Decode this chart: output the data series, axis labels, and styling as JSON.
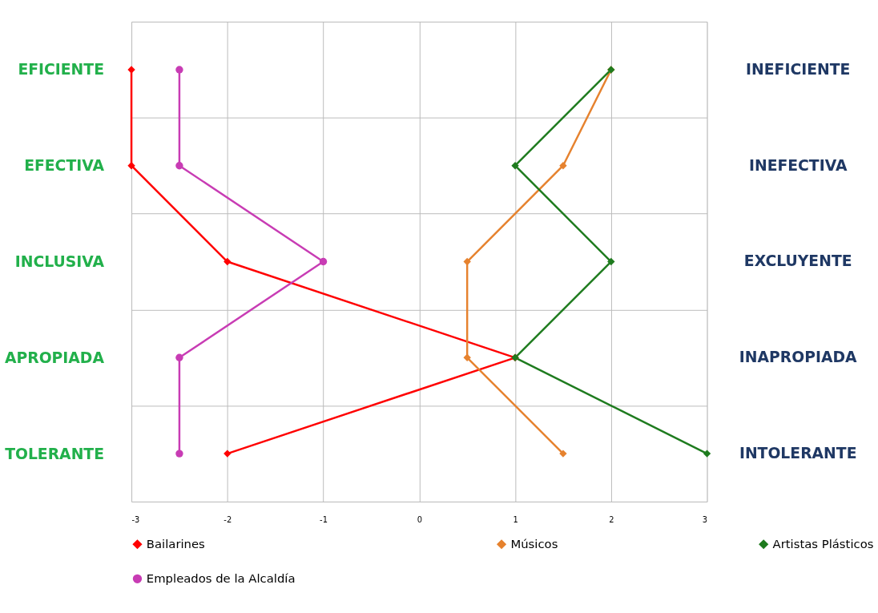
{
  "chart_data": {
    "type": "line",
    "orientation": "horizontal",
    "categories": [
      "EFICIENTE",
      "EFECTIVA",
      "INCLUSIVA",
      "APROPIADA",
      "TOLERANTE"
    ],
    "y2_categories": [
      "INEFICIENTE",
      "INEFECTIVA",
      "EXCLUYENTE",
      "INAPROPIADA",
      "INTOLERANTE"
    ],
    "xlim": [
      -3,
      3
    ],
    "xticks": [
      -3,
      -2,
      -1,
      0,
      1,
      2,
      3
    ],
    "grid": true,
    "legend": "bottom",
    "series": [
      {
        "name": "Bailarines",
        "color": "#ff0000",
        "marker": "diamond",
        "values": [
          -3,
          -3,
          -2,
          1,
          -2
        ]
      },
      {
        "name": "Músicos",
        "color": "#e6822e",
        "marker": "diamond",
        "values": [
          2,
          1.5,
          0.5,
          0.5,
          1.5
        ]
      },
      {
        "name": "Artistas Plásticos",
        "color": "#1e7b1e",
        "marker": "diamond",
        "values": [
          2,
          1,
          2,
          1,
          3
        ]
      },
      {
        "name": "Empleados de la Alcaldía",
        "color": "#c83cb4",
        "marker": "circle",
        "values": [
          -2.5,
          -2.5,
          -1,
          -2.5,
          -2.5
        ]
      }
    ]
  }
}
